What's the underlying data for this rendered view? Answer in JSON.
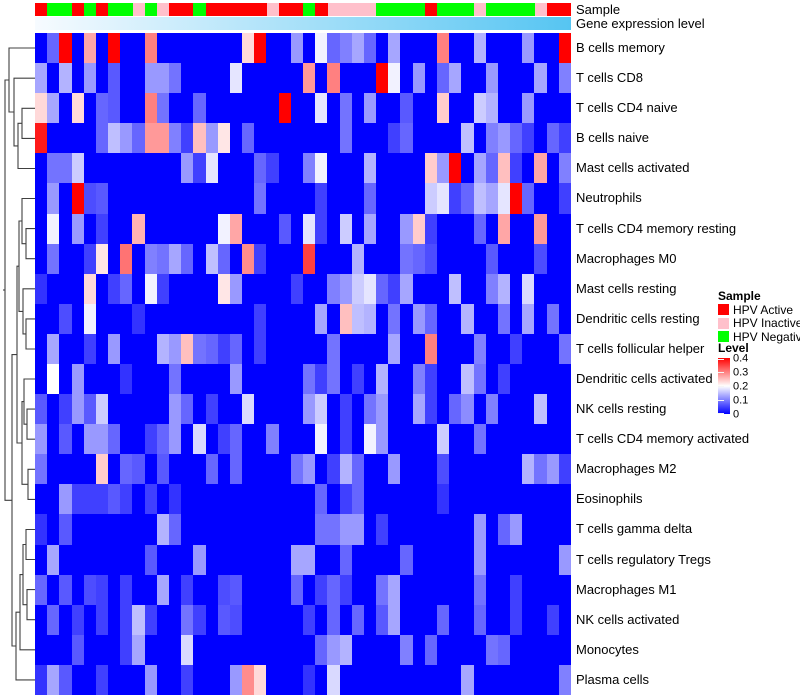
{
  "annotations": {
    "sample_track_label": "Sample",
    "gene_track_label": "Gene expression level",
    "sample_sequence": [
      "active",
      "negative",
      "negative",
      "active",
      "negative",
      "active",
      "negative",
      "negative",
      "inactive",
      "negative",
      "inactive",
      "active",
      "active",
      "negative",
      "active",
      "active",
      "active",
      "active",
      "active",
      "inactive",
      "active",
      "active",
      "negative",
      "active",
      "inactive",
      "inactive",
      "inactive",
      "inactive",
      "negative",
      "negative",
      "negative",
      "negative",
      "active",
      "negative",
      "negative",
      "negative",
      "inactive",
      "negative",
      "negative",
      "negative",
      "negative",
      "inactive",
      "active",
      "active"
    ],
    "sample_color_map": {
      "active": "#FF0000",
      "inactive": "#FFC0CB",
      "negative": "#00FF00"
    },
    "gene_gradient": {
      "start": "#F7FBFF",
      "end": "#56C5F2"
    }
  },
  "legend": {
    "sample_title": "Sample",
    "sample_items": [
      {
        "label": "HPV Active",
        "color": "#FF0000"
      },
      {
        "label": "HPV Inactive",
        "color": "#FFC0CB"
      },
      {
        "label": "HPV Negative",
        "color": "#00FF00"
      }
    ],
    "level_title": "Level",
    "level_ticks": [
      {
        "label": "0.4",
        "value": 0.4
      },
      {
        "label": "0.3",
        "value": 0.3
      },
      {
        "label": "0.2",
        "value": 0.2
      },
      {
        "label": "0.1",
        "value": 0.1
      },
      {
        "label": "0",
        "value": 0
      }
    ]
  },
  "chart_data": {
    "type": "heatmap",
    "title": "",
    "rows": [
      "B cells memory",
      "T cells CD8",
      "T cells CD4 naive",
      "B cells naive",
      "Mast cells activated",
      "Neutrophils",
      "T cells CD4 memory resting",
      "Macrophages M0",
      "Mast cells resting",
      "Dendritic cells resting",
      "T cells follicular helper",
      "Dendritic cells activated",
      "NK cells resting",
      "T cells CD4 memory activated",
      "Macrophages M2",
      "Eosinophils",
      "T cells gamma delta",
      "T cells regulatory  Tregs",
      "Macrophages M1",
      "NK cells activated",
      "Monocytes",
      "Plasma cells"
    ],
    "n_cols": 44,
    "value_range": [
      0,
      0.4
    ],
    "colormap": {
      "stops": [
        {
          "v": 0,
          "color": "#0000FF"
        },
        {
          "v": 0.2,
          "color": "#FFFFFF"
        },
        {
          "v": 0.4,
          "color": "#FF0000"
        }
      ]
    },
    "row_dendrogram": true,
    "values": [
      [
        0,
        0.08,
        0.4,
        0,
        0.27,
        0,
        0.4,
        0,
        0,
        0.3,
        0,
        0,
        0,
        0,
        0,
        0,
        0,
        0.23,
        0.4,
        0,
        0,
        0.12,
        0,
        0.19,
        0.08,
        0.1,
        0.13,
        0.08,
        0,
        0.13,
        0,
        0,
        0,
        0.3,
        0,
        0,
        0.14,
        0,
        0,
        0,
        0.12,
        0,
        0,
        0.4
      ],
      [
        0.13,
        0,
        0.14,
        0,
        0.12,
        0,
        0.07,
        0,
        0,
        0.12,
        0.12,
        0.09,
        0,
        0,
        0,
        0,
        0.18,
        0,
        0,
        0,
        0,
        0,
        0.28,
        0,
        0.3,
        0,
        0,
        0,
        0.4,
        0.19,
        0,
        0.12,
        0,
        0.08,
        0.13,
        0,
        0,
        0.12,
        0,
        0,
        0,
        0.13,
        0,
        0.1
      ],
      [
        0.23,
        0.13,
        0,
        0.23,
        0,
        0.08,
        0.07,
        0,
        0,
        0.3,
        0.09,
        0,
        0,
        0.08,
        0,
        0,
        0,
        0,
        0,
        0,
        0.4,
        0,
        0,
        0.18,
        0,
        0.09,
        0,
        0.12,
        0,
        0,
        0.07,
        0,
        0,
        0.24,
        0,
        0,
        0.16,
        0.14,
        0,
        0,
        0.12,
        0,
        0,
        0
      ],
      [
        0.38,
        0,
        0,
        0,
        0,
        0.08,
        0.15,
        0.12,
        0.08,
        0.28,
        0.28,
        0.1,
        0.05,
        0.25,
        0.12,
        0.22,
        0,
        0.08,
        0,
        0,
        0,
        0,
        0,
        0,
        0,
        0.09,
        0,
        0,
        0,
        0.05,
        0.08,
        0,
        0,
        0,
        0,
        0.15,
        0,
        0.1,
        0.12,
        0.08,
        0.05,
        0,
        0.08,
        0.05
      ],
      [
        0,
        0.09,
        0.09,
        0.16,
        0,
        0,
        0,
        0,
        0,
        0,
        0,
        0,
        0.12,
        0.05,
        0.18,
        0,
        0,
        0,
        0.08,
        0.05,
        0,
        0,
        0.1,
        0.19,
        0,
        0,
        0,
        0.14,
        0,
        0,
        0,
        0,
        0.24,
        0.12,
        0.4,
        0,
        0.13,
        0.08,
        0.25,
        0.05,
        0,
        0.27,
        0,
        0.1
      ],
      [
        0,
        0.12,
        0,
        0.4,
        0.06,
        0.07,
        0,
        0,
        0,
        0,
        0,
        0,
        0,
        0,
        0,
        0,
        0,
        0,
        0.09,
        0,
        0,
        0,
        0,
        0.05,
        0,
        0,
        0,
        0.08,
        0,
        0,
        0,
        0,
        0.16,
        0.18,
        0.05,
        0.08,
        0.15,
        0.13,
        0.18,
        0.4,
        0.08,
        0,
        0,
        0.05
      ],
      [
        0,
        0.19,
        0,
        0.12,
        0,
        0.05,
        0,
        0,
        0.26,
        0,
        0,
        0,
        0,
        0,
        0,
        0.19,
        0.27,
        0,
        0,
        0,
        0.07,
        0,
        0.18,
        0.05,
        0,
        0.16,
        0,
        0.13,
        0,
        0,
        0.12,
        0.24,
        0.05,
        0,
        0,
        0,
        0.08,
        0,
        0.27,
        0,
        0,
        0.28,
        0,
        0
      ],
      [
        0,
        0.09,
        0,
        0,
        0.05,
        0.22,
        0,
        0.31,
        0,
        0.1,
        0.09,
        0.13,
        0.08,
        0,
        0.15,
        0.08,
        0,
        0.29,
        0.05,
        0,
        0,
        0,
        0.35,
        0,
        0,
        0,
        0.14,
        0,
        0,
        0,
        0.09,
        0.08,
        0.06,
        0,
        0,
        0,
        0,
        0.07,
        0,
        0,
        0,
        0.06,
        0,
        0
      ],
      [
        0.04,
        0,
        0,
        0,
        0.23,
        0,
        0.05,
        0.08,
        0,
        0.19,
        0.05,
        0,
        0,
        0,
        0,
        0.22,
        0.12,
        0,
        0,
        0,
        0,
        0.05,
        0,
        0,
        0.1,
        0.12,
        0.16,
        0.18,
        0.08,
        0.05,
        0.13,
        0,
        0,
        0,
        0.15,
        0,
        0,
        0.1,
        0.14,
        0,
        0.17,
        0,
        0,
        0
      ],
      [
        0,
        0,
        0.06,
        0,
        0.19,
        0,
        0,
        0,
        0.04,
        0,
        0,
        0,
        0,
        0,
        0,
        0,
        0,
        0,
        0.05,
        0,
        0,
        0,
        0,
        0.13,
        0,
        0.25,
        0.15,
        0.14,
        0,
        0.09,
        0,
        0.12,
        0.08,
        0,
        0,
        0.14,
        0,
        0,
        0.09,
        0,
        0.13,
        0,
        0.09,
        0
      ],
      [
        0,
        0.13,
        0,
        0,
        0.05,
        0,
        0.12,
        0,
        0,
        0,
        0.14,
        0.12,
        0.25,
        0.09,
        0.08,
        0.05,
        0.08,
        0,
        0.05,
        0,
        0,
        0,
        0,
        0,
        0.09,
        0,
        0,
        0,
        0,
        0.13,
        0,
        0,
        0.3,
        0,
        0,
        0,
        0.1,
        0,
        0,
        0.05,
        0,
        0,
        0,
        0.09
      ],
      [
        0,
        0.2,
        0,
        0.12,
        0,
        0,
        0,
        0.04,
        0,
        0,
        0,
        0.09,
        0,
        0,
        0,
        0,
        0.12,
        0,
        0,
        0,
        0,
        0,
        0.09,
        0.05,
        0.09,
        0,
        0.05,
        0,
        0.14,
        0,
        0,
        0.1,
        0.05,
        0,
        0,
        0.15,
        0.09,
        0,
        0.05,
        0,
        0,
        0,
        0,
        0
      ],
      [
        0.07,
        0,
        0.05,
        0.12,
        0.07,
        0.16,
        0,
        0,
        0,
        0,
        0,
        0.12,
        0.08,
        0,
        0.05,
        0,
        0,
        0.17,
        0,
        0,
        0,
        0,
        0.12,
        0.16,
        0,
        0.05,
        0,
        0.09,
        0.12,
        0,
        0,
        0.13,
        0.05,
        0,
        0.08,
        0.11,
        0,
        0.1,
        0,
        0,
        0,
        0.15,
        0,
        0
      ],
      [
        0.12,
        0,
        0.07,
        0,
        0.12,
        0.12,
        0.08,
        0,
        0,
        0.05,
        0.08,
        0.12,
        0,
        0.17,
        0,
        0.05,
        0.08,
        0,
        0,
        0.1,
        0,
        0,
        0,
        0.19,
        0,
        0.05,
        0,
        0.19,
        0.12,
        0,
        0,
        0,
        0,
        0.16,
        0,
        0,
        0.09,
        0,
        0,
        0,
        0,
        0,
        0,
        0
      ],
      [
        0.09,
        0,
        0,
        0,
        0,
        0.24,
        0,
        0.08,
        0.07,
        0,
        0.07,
        0,
        0,
        0,
        0.08,
        0,
        0.08,
        0,
        0,
        0,
        0,
        0.09,
        0.12,
        0,
        0.05,
        0.14,
        0.08,
        0,
        0,
        0.12,
        0,
        0,
        0,
        0.06,
        0,
        0,
        0,
        0,
        0,
        0,
        0.14,
        0.09,
        0.12,
        0.05
      ],
      [
        0,
        0,
        0.12,
        0.05,
        0.05,
        0.05,
        0.07,
        0.05,
        0,
        0.05,
        0,
        0.04,
        0,
        0,
        0,
        0,
        0,
        0,
        0,
        0,
        0,
        0,
        0,
        0.08,
        0,
        0.05,
        0.08,
        0,
        0,
        0,
        0,
        0,
        0,
        0.04,
        0,
        0,
        0,
        0,
        0,
        0,
        0,
        0,
        0,
        0
      ],
      [
        0.04,
        0,
        0.07,
        0,
        0,
        0,
        0,
        0,
        0,
        0,
        0.14,
        0.08,
        0,
        0,
        0,
        0,
        0,
        0,
        0,
        0,
        0,
        0,
        0,
        0.09,
        0.09,
        0.12,
        0.12,
        0,
        0.05,
        0,
        0,
        0,
        0,
        0,
        0,
        0,
        0.12,
        0,
        0.08,
        0.12,
        0,
        0,
        0,
        0
      ],
      [
        0,
        0.13,
        0,
        0,
        0,
        0,
        0,
        0,
        0,
        0.07,
        0,
        0,
        0,
        0.12,
        0,
        0,
        0,
        0,
        0,
        0,
        0,
        0.13,
        0.13,
        0,
        0,
        0.08,
        0,
        0,
        0,
        0,
        0.08,
        0,
        0,
        0,
        0,
        0,
        0.12,
        0,
        0,
        0,
        0,
        0,
        0,
        0.12
      ],
      [
        0.08,
        0,
        0.07,
        0,
        0.06,
        0.05,
        0,
        0.05,
        0,
        0,
        0.13,
        0,
        0.05,
        0,
        0,
        0.06,
        0.07,
        0,
        0,
        0,
        0,
        0.08,
        0,
        0.05,
        0.08,
        0.05,
        0,
        0,
        0.09,
        0.13,
        0,
        0,
        0,
        0,
        0,
        0,
        0.09,
        0,
        0,
        0.05,
        0,
        0,
        0,
        0
      ],
      [
        0,
        0.08,
        0,
        0.05,
        0,
        0.05,
        0,
        0.05,
        0.15,
        0.05,
        0,
        0,
        0.09,
        0.05,
        0,
        0.07,
        0.06,
        0,
        0,
        0,
        0,
        0,
        0.05,
        0,
        0.08,
        0,
        0.08,
        0,
        0.07,
        0.13,
        0,
        0,
        0,
        0.08,
        0,
        0,
        0.08,
        0,
        0,
        0.05,
        0,
        0,
        0.05,
        0
      ],
      [
        0,
        0,
        0,
        0.07,
        0,
        0,
        0,
        0.05,
        0.13,
        0,
        0,
        0,
        0.17,
        0,
        0,
        0,
        0,
        0,
        0,
        0,
        0,
        0,
        0,
        0.08,
        0.12,
        0.14,
        0,
        0,
        0,
        0,
        0.1,
        0,
        0.08,
        0,
        0,
        0,
        0,
        0.09,
        0.08,
        0,
        0,
        0,
        0,
        0
      ],
      [
        0.04,
        0.13,
        0.07,
        0,
        0,
        0.05,
        0,
        0,
        0,
        0.12,
        0,
        0,
        0.05,
        0,
        0,
        0,
        0.12,
        0.29,
        0.23,
        0,
        0,
        0,
        0.04,
        0,
        0.17,
        0,
        0,
        0,
        0,
        0,
        0,
        0,
        0,
        0,
        0,
        0.13,
        0,
        0,
        0,
        0,
        0,
        0,
        0,
        0.1
      ]
    ]
  }
}
